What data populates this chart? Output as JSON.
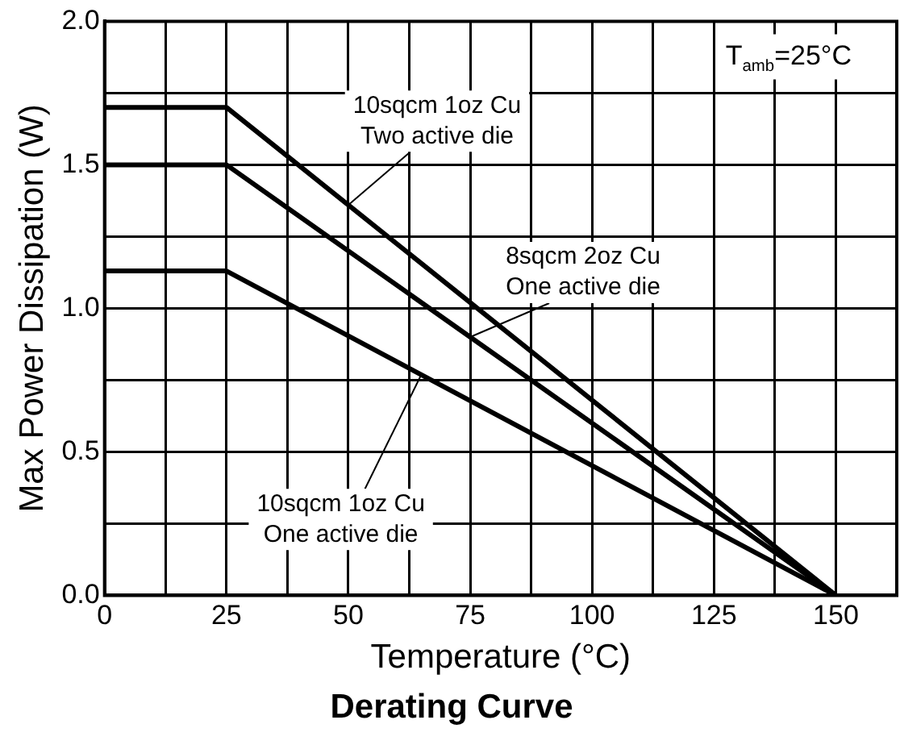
{
  "chart_data": {
    "type": "line",
    "title": "Derating Curve",
    "xlabel": "Temperature (°C)",
    "ylabel": "Max Power Dissipation (W)",
    "x": [
      0,
      25,
      150
    ],
    "series": [
      {
        "color": "#000000",
        "values": [
          1.7,
          1.7,
          0
        ]
      },
      {
        "color": "#000000",
        "values": [
          1.5,
          1.5,
          0
        ]
      },
      {
        "color": "#000000",
        "values": [
          1.13,
          1.13,
          0
        ]
      }
    ],
    "xlim": [
      0,
      162.5
    ],
    "xticks": [
      0,
      {
        "value": 12.5,
        "label": null
      },
      25,
      {
        "value": 37.5,
        "label": null
      },
      50,
      {
        "value": 62.5,
        "label": null
      },
      75,
      {
        "value": 87.5,
        "label": null
      },
      100,
      {
        "value": 112.5,
        "label": null
      },
      125,
      {
        "value": 137.5,
        "label": null
      },
      150
    ],
    "ylim": [
      0,
      2
    ],
    "yticks": [
      {
        "value": 0,
        "label": "0.0"
      },
      {
        "value": 0.25,
        "label": null
      },
      {
        "value": 0.5,
        "label": "0.5"
      },
      {
        "value": 0.75,
        "label": null
      },
      {
        "value": 1,
        "label": "1.0"
      },
      {
        "value": 1.25,
        "label": null
      },
      {
        "value": 1.5,
        "label": "1.5"
      },
      {
        "value": 1.75,
        "label": null
      },
      {
        "value": 2,
        "label": "2.0"
      }
    ],
    "grid": true,
    "legend": false,
    "marker": "none",
    "line_style": "solid",
    "annotations": [
      "T$_{amb}$=25°C",
      {
        "text": "10sqcm 1oz Cu\nTwo active die",
        "x": 50,
        "y": 1.36
      },
      {
        "text": "8sqcm 2oz Cu\nOne active die",
        "x": 75,
        "y": 0.9
      },
      {
        "text": "10sqcm 1oz Cu\nOne active die",
        "x": 65,
        "y": 0.77
      }
    ]
  }
}
